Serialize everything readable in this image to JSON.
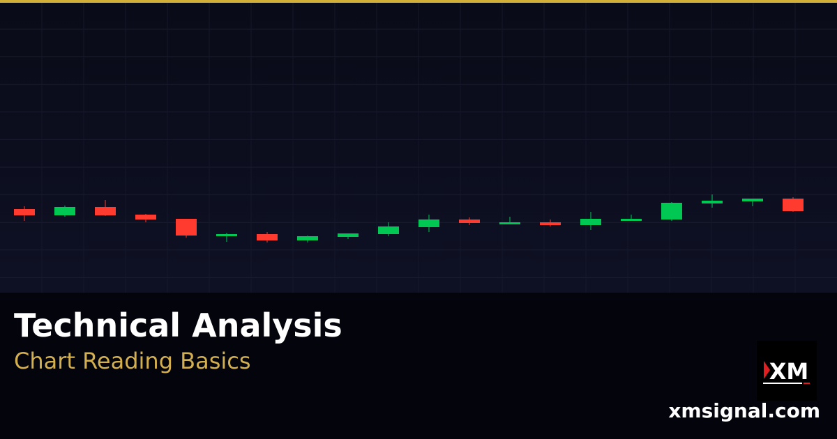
{
  "title": "Technical Analysis",
  "subtitle": "Chart Reading Basics",
  "site": "xmsignal.com",
  "logo_text": "XM",
  "colors": {
    "accent": "#d4af37",
    "up": "#00c853",
    "down": "#ff3b30",
    "background": "#0d0e1e"
  },
  "chart_data": {
    "type": "candlestick",
    "grid": true,
    "axes_visible": false,
    "candles": [
      {
        "open": 120,
        "high": 124,
        "low": 103,
        "close": 111
      },
      {
        "open": 111,
        "high": 125,
        "low": 109,
        "close": 123
      },
      {
        "open": 123,
        "high": 133,
        "low": 110,
        "close": 111
      },
      {
        "open": 112,
        "high": 113,
        "low": 101,
        "close": 105
      },
      {
        "open": 106,
        "high": 106,
        "low": 79,
        "close": 82
      },
      {
        "open": 81,
        "high": 86,
        "low": 73,
        "close": 84
      },
      {
        "open": 84,
        "high": 87,
        "low": 72,
        "close": 75
      },
      {
        "open": 75,
        "high": 82,
        "low": 72,
        "close": 81
      },
      {
        "open": 80,
        "high": 85,
        "low": 77,
        "close": 85
      },
      {
        "open": 84,
        "high": 101,
        "low": 81,
        "close": 95
      },
      {
        "open": 94,
        "high": 112,
        "low": 87,
        "close": 105
      },
      {
        "open": 105,
        "high": 108,
        "low": 97,
        "close": 100
      },
      {
        "open": 98,
        "high": 109,
        "low": 98,
        "close": 101
      },
      {
        "open": 101,
        "high": 105,
        "low": 95,
        "close": 97
      },
      {
        "open": 97,
        "high": 116,
        "low": 90,
        "close": 106
      },
      {
        "open": 103,
        "high": 112,
        "low": 103,
        "close": 106
      },
      {
        "open": 105,
        "high": 130,
        "low": 103,
        "close": 129
      },
      {
        "open": 128,
        "high": 141,
        "low": 122,
        "close": 132
      },
      {
        "open": 131,
        "high": 135,
        "low": 124,
        "close": 135
      },
      {
        "open": 135,
        "high": 137,
        "low": 116,
        "close": 117
      }
    ]
  }
}
